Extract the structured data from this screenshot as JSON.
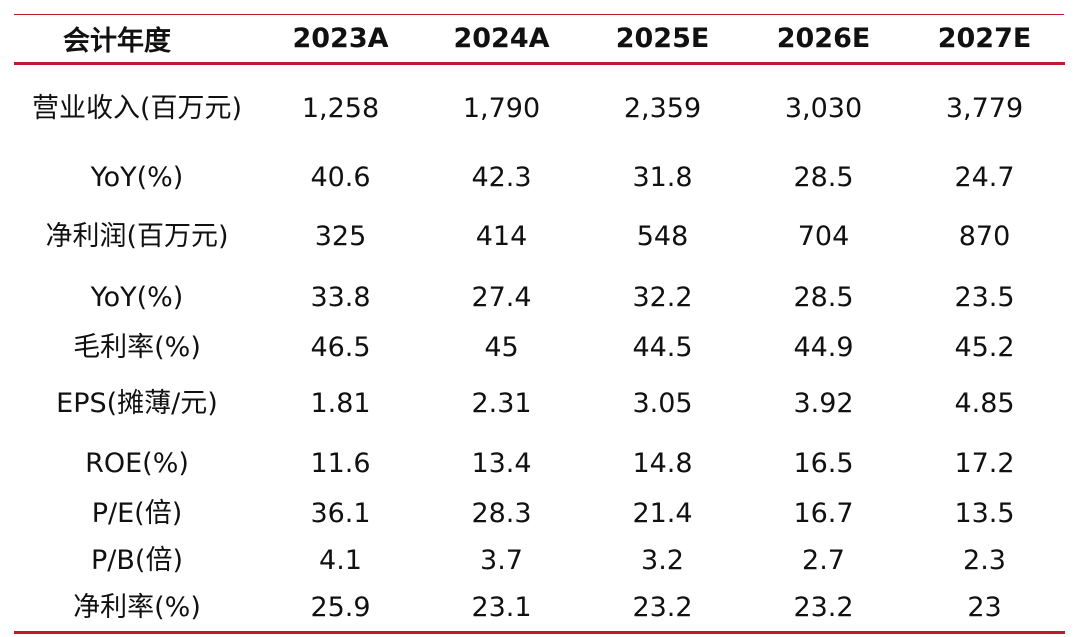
{
  "table": {
    "header": [
      "会计年度",
      "2023A",
      "2024A",
      "2025E",
      "2026E",
      "2027E"
    ],
    "rows": [
      {
        "label": "营业收入(百万元)",
        "values": [
          "1,258",
          "1,790",
          "2,359",
          "3,030",
          "3,779"
        ]
      },
      {
        "label": "YoY(%)",
        "values": [
          "40.6",
          "42.3",
          "31.8",
          "28.5",
          "24.7"
        ]
      },
      {
        "label": "净利润(百万元)",
        "values": [
          "325",
          "414",
          "548",
          "704",
          "870"
        ]
      },
      {
        "label": "YoY(%)",
        "values": [
          "33.8",
          "27.4",
          "32.2",
          "28.5",
          "23.5"
        ]
      },
      {
        "label": "毛利率(%)",
        "values": [
          "46.5",
          "45",
          "44.5",
          "44.9",
          "45.2"
        ]
      },
      {
        "label": "EPS(摊薄/元)",
        "values": [
          "1.81",
          "2.31",
          "3.05",
          "3.92",
          "4.85"
        ]
      },
      {
        "label": "ROE(%)",
        "values": [
          "11.6",
          "13.4",
          "14.8",
          "16.5",
          "17.2"
        ]
      },
      {
        "label": "P/E(倍)",
        "values": [
          "36.1",
          "28.3",
          "21.4",
          "16.7",
          "13.5"
        ]
      },
      {
        "label": "P/B(倍)",
        "values": [
          "4.1",
          "3.7",
          "3.2",
          "2.7",
          "2.3"
        ]
      },
      {
        "label": "净利率(%)",
        "values": [
          "25.9",
          "23.1",
          "23.2",
          "23.2",
          "23"
        ]
      }
    ]
  },
  "colors": {
    "rule": "#c01a2c",
    "text": "#111111"
  }
}
